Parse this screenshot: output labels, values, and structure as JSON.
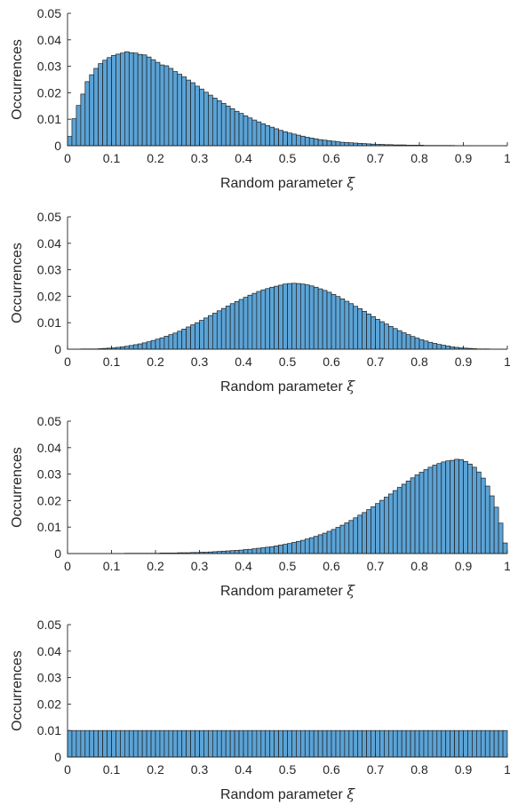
{
  "colors": {
    "bar_fill": "#5ba3d6",
    "bar_edge": "#1e1e1e",
    "axis": "#262626",
    "background": "#ffffff"
  },
  "chart_data": [
    {
      "type": "bar",
      "xlabel_text": "Random parameter",
      "xlabel_symbol": "ξ",
      "ylabel": "Occurrences",
      "xlim": [
        0,
        1
      ],
      "ylim": [
        0,
        0.05
      ],
      "xticks": [
        "0",
        "0.1",
        "0.2",
        "0.3",
        "0.4",
        "0.5",
        "0.6",
        "0.7",
        "0.8",
        "0.9",
        "1"
      ],
      "yticks": [
        "0",
        "0.01",
        "0.02",
        "0.03",
        "0.04",
        "0.05"
      ],
      "bin_width": 0.01,
      "grid": false,
      "values": [
        0.0035,
        0.0102,
        0.0152,
        0.0195,
        0.0242,
        0.0268,
        0.0292,
        0.031,
        0.0323,
        0.0333,
        0.0341,
        0.0346,
        0.035,
        0.0355,
        0.0351,
        0.035,
        0.0345,
        0.0343,
        0.0335,
        0.0325,
        0.0315,
        0.0305,
        0.0302,
        0.0292,
        0.028,
        0.027,
        0.026,
        0.0248,
        0.0238,
        0.0225,
        0.0214,
        0.0202,
        0.0191,
        0.018,
        0.017,
        0.016,
        0.015,
        0.014,
        0.013,
        0.0122,
        0.0113,
        0.0105,
        0.0097,
        0.009,
        0.0083,
        0.0076,
        0.007,
        0.0064,
        0.0058,
        0.0053,
        0.0048,
        0.0044,
        0.004,
        0.0036,
        0.0032,
        0.0029,
        0.0026,
        0.0023,
        0.0021,
        0.0019,
        0.0017,
        0.0015,
        0.0013,
        0.0012,
        0.0011,
        0.001,
        0.0009,
        0.0008,
        0.0007,
        0.0006,
        0.0005,
        0.0005,
        0.0004,
        0.0004,
        0.0003,
        0.0003,
        0.0003,
        0.0002,
        0.0002,
        0.0002,
        0.0002,
        0.0001,
        0.0001,
        0.0001,
        0.0001,
        0.0001,
        0.0001,
        0.0001,
        0.0,
        0.0,
        0.0,
        0.0,
        0.0,
        0.0,
        0.0,
        0.0,
        0.0,
        0.0,
        0.0,
        0.0
      ]
    },
    {
      "type": "bar",
      "xlabel_text": "Random parameter",
      "xlabel_symbol": "ξ",
      "ylabel": "Occurrences",
      "xlim": [
        0,
        1
      ],
      "ylim": [
        0,
        0.05
      ],
      "xticks": [
        "0",
        "0.1",
        "0.2",
        "0.3",
        "0.4",
        "0.5",
        "0.6",
        "0.7",
        "0.8",
        "0.9",
        "1"
      ],
      "yticks": [
        "0",
        "0.01",
        "0.02",
        "0.03",
        "0.04",
        "0.05"
      ],
      "bin_width": 0.01,
      "grid": false,
      "values": [
        0.0,
        0.0,
        0.0,
        0.0001,
        0.0001,
        0.0001,
        0.0001,
        0.0002,
        0.0003,
        0.0004,
        0.0005,
        0.0007,
        0.0009,
        0.0011,
        0.0014,
        0.0017,
        0.002,
        0.0024,
        0.0028,
        0.0033,
        0.0038,
        0.0043,
        0.0049,
        0.0055,
        0.0061,
        0.0068,
        0.0076,
        0.0084,
        0.0092,
        0.01,
        0.0109,
        0.0118,
        0.0127,
        0.0136,
        0.0145,
        0.0154,
        0.0163,
        0.0172,
        0.018,
        0.0188,
        0.0196,
        0.0204,
        0.0211,
        0.0218,
        0.0224,
        0.0229,
        0.0234,
        0.0238,
        0.0242,
        0.0246,
        0.0248,
        0.0249,
        0.0248,
        0.0246,
        0.0243,
        0.0239,
        0.0234,
        0.0228,
        0.0222,
        0.0215,
        0.0207,
        0.0199,
        0.019,
        0.0181,
        0.0172,
        0.0162,
        0.0153,
        0.0143,
        0.0133,
        0.0123,
        0.0113,
        0.0104,
        0.0095,
        0.0086,
        0.0078,
        0.007,
        0.0062,
        0.0055,
        0.0048,
        0.0042,
        0.0036,
        0.0031,
        0.0026,
        0.0022,
        0.0018,
        0.0015,
        0.0012,
        0.0009,
        0.0007,
        0.0005,
        0.0004,
        0.0003,
        0.0002,
        0.0001,
        0.0001,
        0.0001,
        0.0,
        0.0,
        0.0,
        0.0
      ]
    },
    {
      "type": "bar",
      "xlabel_text": "Random parameter",
      "xlabel_symbol": "ξ",
      "ylabel": "Occurrences",
      "xlim": [
        0,
        1
      ],
      "ylim": [
        0,
        0.05
      ],
      "xticks": [
        "0",
        "0.1",
        "0.2",
        "0.3",
        "0.4",
        "0.5",
        "0.6",
        "0.7",
        "0.8",
        "0.9",
        "1"
      ],
      "yticks": [
        "0",
        "0.01",
        "0.02",
        "0.03",
        "0.04",
        "0.05"
      ],
      "bin_width": 0.01,
      "grid": false,
      "values": [
        0.0,
        0.0,
        0.0,
        0.0,
        0.0,
        0.0,
        0.0,
        0.0,
        0.0,
        0.0,
        0.0,
        0.0,
        0.0,
        0.0001,
        0.0001,
        0.0001,
        0.0001,
        0.0001,
        0.0001,
        0.0001,
        0.0001,
        0.0002,
        0.0002,
        0.0002,
        0.0002,
        0.0003,
        0.0003,
        0.0003,
        0.0004,
        0.0004,
        0.0005,
        0.0005,
        0.0006,
        0.0007,
        0.0008,
        0.0009,
        0.001,
        0.0011,
        0.0012,
        0.0013,
        0.0015,
        0.0016,
        0.0018,
        0.002,
        0.0022,
        0.0024,
        0.0026,
        0.0029,
        0.0032,
        0.0035,
        0.0038,
        0.0042,
        0.0046,
        0.005,
        0.0055,
        0.006,
        0.0065,
        0.0071,
        0.0077,
        0.0084,
        0.0091,
        0.0099,
        0.0107,
        0.0116,
        0.0125,
        0.0135,
        0.0145,
        0.0155,
        0.0166,
        0.0177,
        0.0189,
        0.0201,
        0.0213,
        0.0225,
        0.0238,
        0.025,
        0.0262,
        0.0274,
        0.0286,
        0.0297,
        0.0307,
        0.0317,
        0.0326,
        0.0334,
        0.034,
        0.0346,
        0.035,
        0.0352,
        0.0356,
        0.0355,
        0.0348,
        0.0338,
        0.0326,
        0.0308,
        0.0285,
        0.0255,
        0.0218,
        0.0175,
        0.0115,
        0.004
      ]
    },
    {
      "type": "bar",
      "xlabel_text": "Random parameter",
      "xlabel_symbol": "ξ",
      "ylabel": "Occurrences",
      "xlim": [
        0,
        1
      ],
      "ylim": [
        0,
        0.05
      ],
      "xticks": [
        "0",
        "0.1",
        "0.2",
        "0.3",
        "0.4",
        "0.5",
        "0.6",
        "0.7",
        "0.8",
        "0.9",
        "1"
      ],
      "yticks": [
        "0",
        "0.01",
        "0.02",
        "0.03",
        "0.04",
        "0.05"
      ],
      "bin_width": 0.01,
      "grid": false,
      "values": [
        0.01,
        0.01,
        0.01,
        0.01,
        0.01,
        0.01,
        0.01,
        0.01,
        0.01,
        0.01,
        0.01,
        0.01,
        0.01,
        0.01,
        0.01,
        0.01,
        0.01,
        0.01,
        0.01,
        0.01,
        0.01,
        0.01,
        0.01,
        0.01,
        0.01,
        0.01,
        0.01,
        0.01,
        0.01,
        0.01,
        0.01,
        0.01,
        0.01,
        0.01,
        0.01,
        0.01,
        0.01,
        0.01,
        0.01,
        0.01,
        0.01,
        0.01,
        0.01,
        0.01,
        0.01,
        0.01,
        0.01,
        0.01,
        0.01,
        0.01,
        0.01,
        0.01,
        0.01,
        0.01,
        0.01,
        0.01,
        0.01,
        0.01,
        0.01,
        0.01,
        0.01,
        0.01,
        0.01,
        0.01,
        0.01,
        0.01,
        0.01,
        0.01,
        0.01,
        0.01,
        0.01,
        0.01,
        0.01,
        0.01,
        0.01,
        0.01,
        0.01,
        0.01,
        0.01,
        0.01,
        0.01,
        0.01,
        0.01,
        0.01,
        0.01,
        0.01,
        0.01,
        0.01,
        0.01,
        0.01,
        0.01,
        0.01,
        0.01,
        0.01,
        0.01,
        0.01,
        0.01,
        0.01,
        0.01,
        0.01
      ]
    }
  ]
}
